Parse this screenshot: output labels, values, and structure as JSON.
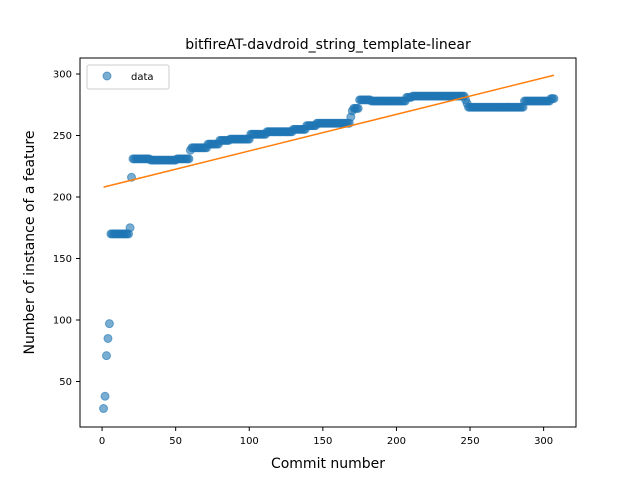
{
  "chart_data": {
    "type": "scatter",
    "title": "bitfireAT-davdroid_string_template-linear",
    "xlabel": "Commit number",
    "ylabel": "Number of instance of a feature",
    "xlim": [
      -15,
      322
    ],
    "ylim": [
      13,
      313
    ],
    "xticks": [
      0,
      50,
      100,
      150,
      200,
      250,
      300
    ],
    "yticks": [
      50,
      100,
      150,
      200,
      250,
      300
    ],
    "grid": false,
    "legend": {
      "placement": "top-left",
      "entries": [
        "data"
      ]
    },
    "series": [
      {
        "name": "data",
        "kind": "scatter",
        "color": "#1f77b4",
        "segments": [
          [
            1,
            28
          ],
          [
            2,
            38
          ],
          [
            3,
            71
          ],
          [
            4,
            85
          ],
          [
            5,
            97
          ],
          [
            [
              6,
              18
            ],
            170
          ],
          [
            19,
            175
          ],
          [
            20,
            216
          ],
          [
            [
              21,
              32
            ],
            231
          ],
          [
            [
              33,
              50
            ],
            230
          ],
          [
            [
              51,
              59
            ],
            231
          ],
          [
            60,
            238
          ],
          [
            [
              61,
              71
            ],
            240
          ],
          [
            [
              72,
              79
            ],
            243
          ],
          [
            [
              80,
              86
            ],
            246
          ],
          [
            [
              87,
              100
            ],
            247
          ],
          [
            [
              101,
              111
            ],
            251
          ],
          [
            [
              112,
              129
            ],
            253
          ],
          [
            [
              130,
              138
            ],
            255
          ],
          [
            [
              139,
              145
            ],
            258
          ],
          [
            [
              146,
              168
            ],
            260
          ],
          [
            169,
            265
          ],
          [
            170,
            270
          ],
          [
            171,
            272
          ],
          [
            [
              172,
              174
            ],
            272
          ],
          [
            [
              175,
              182
            ],
            279
          ],
          [
            [
              183,
              206
            ],
            278
          ],
          [
            [
              207,
              210
            ],
            281
          ],
          [
            [
              211,
              246
            ],
            282
          ],
          [
            247,
            279
          ],
          [
            248,
            276
          ],
          [
            [
              249,
              280
            ],
            273
          ],
          [
            [
              281,
              286
            ],
            273
          ],
          [
            [
              287,
              304
            ],
            278
          ],
          [
            [
              305,
              307
            ],
            280
          ]
        ]
      },
      {
        "kind": "line",
        "color": "#ff7f0e",
        "x": [
          1,
          307
        ],
        "y": [
          208,
          299
        ]
      }
    ]
  }
}
